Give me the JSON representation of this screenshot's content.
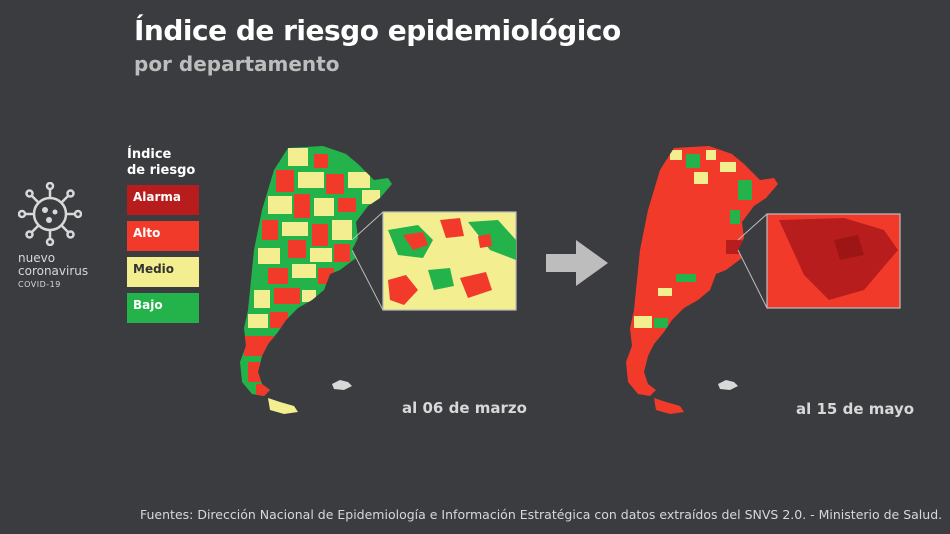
{
  "header": {
    "title": "Índice de riesgo epidemiológico",
    "subtitle": "por departamento"
  },
  "logo": {
    "icon": "virus-icon",
    "line1": "nuevo",
    "line2": "coronavirus",
    "line3": "COVID-19"
  },
  "legend": {
    "title_line1": "Índice",
    "title_line2": "de riesgo",
    "items": [
      {
        "label": "Alarma",
        "color": "#b81d1d",
        "text_color": "#ffffff"
      },
      {
        "label": "Alto",
        "color": "#f23a2a",
        "text_color": "#ffffff"
      },
      {
        "label": "Medio",
        "color": "#f3ee8f",
        "text_color": "#333333"
      },
      {
        "label": "Bajo",
        "color": "#23b34a",
        "text_color": "#ffffff"
      }
    ]
  },
  "maps": [
    {
      "date": "al 06 de marzo"
    },
    {
      "date": "al 15 de mayo"
    }
  ],
  "arrow_icon": "arrow-right-icon",
  "source": "Fuentes: Dirección Nacional de Epidemiología e Información Estratégica con datos extraídos del SNVS 2.0. - Ministerio de Salud."
}
